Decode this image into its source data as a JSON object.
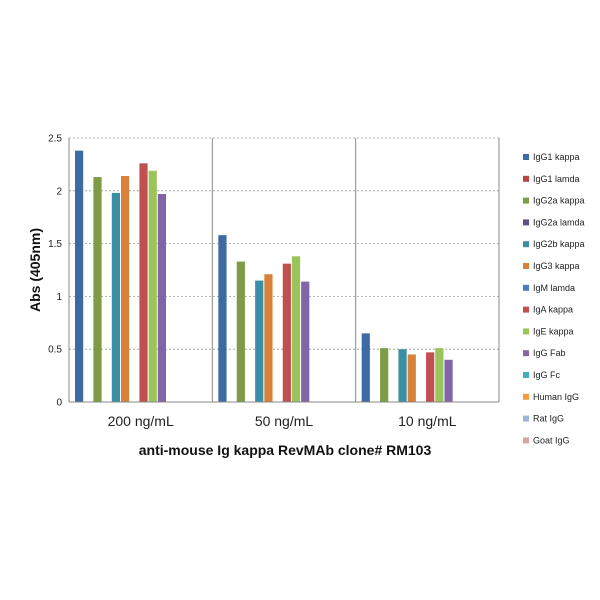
{
  "chart_data": {
    "type": "bar",
    "categories": [
      "200 ng/mL",
      "50 ng/mL",
      "10 ng/mL"
    ],
    "xlabel": "anti-mouse  Ig kappa  RevMAb clone# RM103",
    "ylabel": "Abs (405nm)",
    "ylim": [
      0,
      2.5
    ],
    "yticks": [
      "0",
      "0.5",
      "1",
      "1.5",
      "2",
      "2.5"
    ],
    "grid": true,
    "legend_position": "right",
    "series": [
      {
        "name": "IgG1 kappa",
        "color": "#3e6aa4",
        "values": [
          2.38,
          1.58,
          0.65
        ]
      },
      {
        "name": "IgG1 lamda",
        "color": "#b84444",
        "values": [
          null,
          null,
          null
        ]
      },
      {
        "name": "IgG2a kappa",
        "color": "#7e9b45",
        "values": [
          2.13,
          1.33,
          0.51
        ]
      },
      {
        "name": "IgG2a lamda",
        "color": "#62508a",
        "values": [
          null,
          null,
          null
        ]
      },
      {
        "name": "IgG2b kappa",
        "color": "#3b8fa5",
        "values": [
          1.98,
          1.15,
          0.5
        ]
      },
      {
        "name": "IgG3 kappa",
        "color": "#d9813a",
        "values": [
          2.14,
          1.21,
          0.45
        ]
      },
      {
        "name": "IgM lamda",
        "color": "#4a7fbf",
        "values": [
          null,
          null,
          null
        ]
      },
      {
        "name": "IgA kappa",
        "color": "#c24f4f",
        "values": [
          2.26,
          1.31,
          0.47
        ]
      },
      {
        "name": "IgE kappa",
        "color": "#9ac45a",
        "values": [
          2.19,
          1.38,
          0.51
        ]
      },
      {
        "name": "IgG Fab",
        "color": "#8264a8",
        "values": [
          1.97,
          1.14,
          0.4
        ]
      },
      {
        "name": "IgG Fc",
        "color": "#45acc8",
        "values": [
          null,
          null,
          null
        ]
      },
      {
        "name": "Human IgG",
        "color": "#f29b43",
        "values": [
          null,
          null,
          null
        ]
      },
      {
        "name": "Rat IgG",
        "color": "#9fb4d6",
        "values": [
          null,
          null,
          null
        ]
      },
      {
        "name": "Goat IgG",
        "color": "#dba5a5",
        "values": [
          null,
          null,
          null
        ]
      }
    ]
  }
}
